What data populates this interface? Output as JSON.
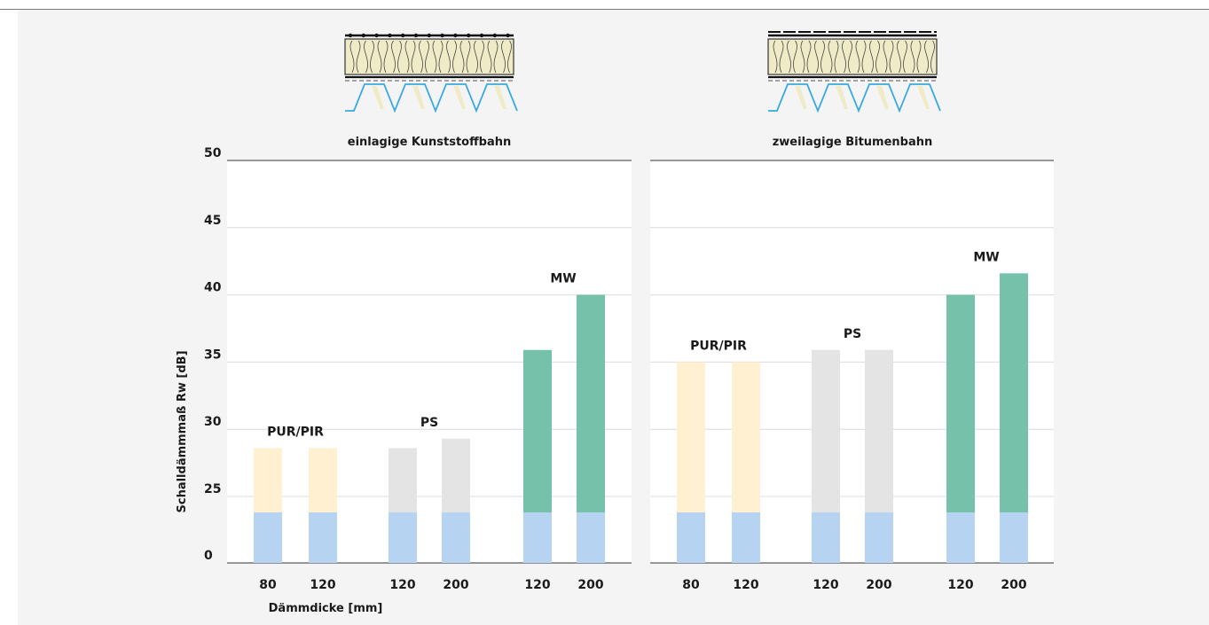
{
  "chart_data": [
    {
      "type": "bar",
      "title": "einlagige Kunststoffbahn",
      "ylabel": "Schalldämmmaß Rw [dB]",
      "xlabel": "Dämmdicke [mm]",
      "ylim": [
        0,
        50
      ],
      "yticks": [
        0,
        25,
        30,
        35,
        40,
        45,
        50
      ],
      "grid": true,
      "groups": [
        {
          "name": "PUR/PIR",
          "color": "#fff0d2",
          "categories": [
            "80",
            "120"
          ],
          "values": [
            28.6,
            28.6
          ]
        },
        {
          "name": "PS",
          "color": "#e4e4e4",
          "categories": [
            "120",
            "200"
          ],
          "values": [
            28.6,
            29.3
          ]
        },
        {
          "name": "MW",
          "color": "#76c1aa",
          "categories": [
            "120",
            "200"
          ],
          "values": [
            35.9,
            40.0
          ]
        }
      ],
      "base_values": [
        19,
        19,
        19,
        19,
        19,
        19
      ],
      "base_color": "#b6d3f2"
    },
    {
      "type": "bar",
      "title": "zweilagige Bitumenbahn",
      "ylim": [
        0,
        50
      ],
      "grid": true,
      "groups": [
        {
          "name": "PUR/PIR",
          "color": "#fff0d2",
          "categories": [
            "80",
            "120"
          ],
          "values": [
            35.0,
            35.0
          ]
        },
        {
          "name": "PS",
          "color": "#e4e4e4",
          "categories": [
            "120",
            "200"
          ],
          "values": [
            35.9,
            35.9
          ]
        },
        {
          "name": "MW",
          "color": "#76c1aa",
          "categories": [
            "120",
            "200"
          ],
          "values": [
            40.0,
            41.6
          ]
        }
      ],
      "base_values": [
        19,
        19,
        19,
        19,
        19,
        19
      ],
      "base_color": "#b6d3f2"
    }
  ],
  "illustrations": {
    "left": "roof-section-plastic-membrane-icon",
    "right": "roof-section-bitumen-membrane-icon"
  },
  "colors": {
    "insulation": "#f0ebc7",
    "deck": "#3aa9df"
  }
}
